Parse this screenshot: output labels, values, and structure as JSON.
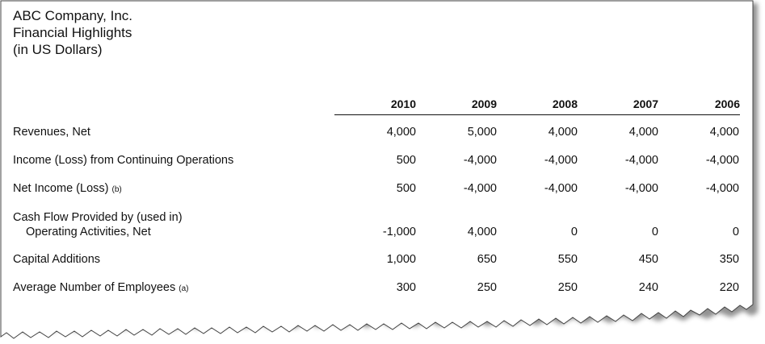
{
  "title": {
    "line1": "ABC Company, Inc.",
    "line2": "Financial Highlights",
    "line3": "(in US Dollars)"
  },
  "table": {
    "years": [
      "2010",
      "2009",
      "2008",
      "2007",
      "2006"
    ],
    "rows": [
      {
        "label": "Revenues, Net",
        "note": "",
        "label2": "",
        "values": [
          "4,000",
          "5,000",
          "4,000",
          "4,000",
          "4,000"
        ]
      },
      {
        "label": "Income (Loss) from Continuing Operations",
        "note": "",
        "label2": "",
        "values": [
          "500",
          "-4,000",
          "-4,000",
          "-4,000",
          "-4,000"
        ]
      },
      {
        "label": "Net Income (Loss)",
        "note": "(b)",
        "label2": "",
        "values": [
          "500",
          "-4,000",
          "-4,000",
          "-4,000",
          "-4,000"
        ]
      },
      {
        "label": "Cash Flow Provided by (used in)",
        "note": "",
        "label2": "Operating Activities, Net",
        "values": [
          "-1,000",
          "4,000",
          "0",
          "0",
          "0"
        ]
      },
      {
        "label": "Capital Additions",
        "note": "",
        "label2": "",
        "values": [
          "1,000",
          "650",
          "550",
          "450",
          "350"
        ]
      },
      {
        "label": "Average Number of Employees",
        "note": "(a)",
        "label2": "",
        "values": [
          "300",
          "250",
          "250",
          "240",
          "220"
        ]
      }
    ]
  }
}
